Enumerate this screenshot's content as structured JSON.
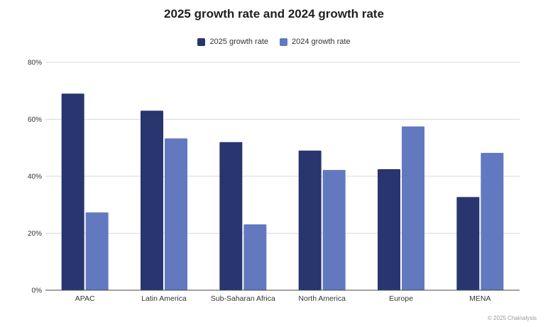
{
  "chart_data": {
    "type": "bar",
    "title": "2025 growth rate and 2024 growth rate",
    "categories": [
      "APAC",
      "Latin America",
      "Sub-Saharan Africa",
      "North America",
      "Europe",
      "MENA"
    ],
    "series": [
      {
        "name": "2025 growth rate",
        "color": "#28356f",
        "values": [
          69,
          63,
          52,
          49,
          42.5,
          32.7
        ]
      },
      {
        "name": "2024 growth rate",
        "color": "#6279c0",
        "values": [
          27.3,
          53.3,
          23.1,
          42.2,
          57.5,
          48.2
        ]
      }
    ],
    "yticks": [
      "0%",
      "20%",
      "40%",
      "60%",
      "80%"
    ],
    "ylim": [
      0,
      80
    ],
    "grid": true,
    "legend_position": "top-center"
  },
  "footer": {
    "copyright": "© 2025 Chainalysis"
  }
}
